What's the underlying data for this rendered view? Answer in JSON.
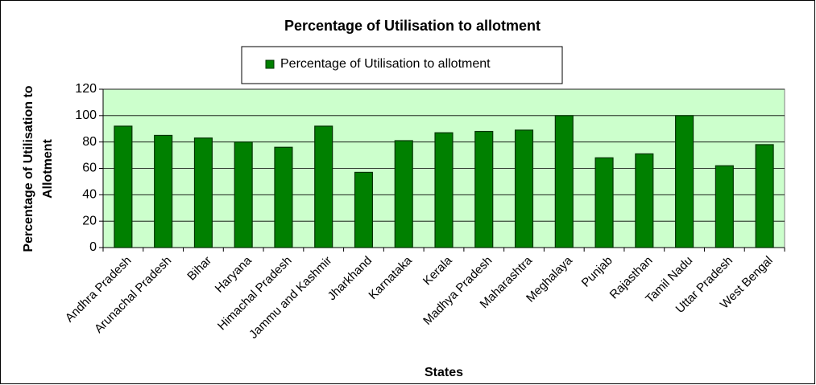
{
  "chart_data": {
    "type": "bar",
    "title": "Percentage of Utilisation to allotment",
    "xlabel": "States",
    "ylabel": [
      "Percentage of Utilisation to",
      "Allotment"
    ],
    "categories": [
      "Andhra Pradesh",
      "Arunachal Pradesh",
      "Bihar",
      "Haryana",
      "Himachal Pradesh",
      "Jammu and Kashmir",
      "Jharkhand",
      "Karnataka",
      "Kerala",
      "Madhya Pradesh",
      "Maharashtra",
      "Meghalaya",
      "Punjab",
      "Rajasthan",
      "Tamil Nadu",
      "Uttar Pradesh",
      "West Bengal"
    ],
    "series": [
      {
        "name": "Percentage of Utilisation to allotment",
        "color": "#008000",
        "values": [
          92,
          85,
          83,
          80,
          76,
          92,
          57,
          81,
          87,
          88,
          89,
          100,
          68,
          71,
          100,
          62,
          78
        ]
      }
    ],
    "ylim": [
      0,
      120
    ],
    "yticks": [
      0,
      20,
      40,
      60,
      80,
      100,
      120
    ],
    "grid": true,
    "plot_background": "#ccffcc",
    "legend": "top"
  }
}
